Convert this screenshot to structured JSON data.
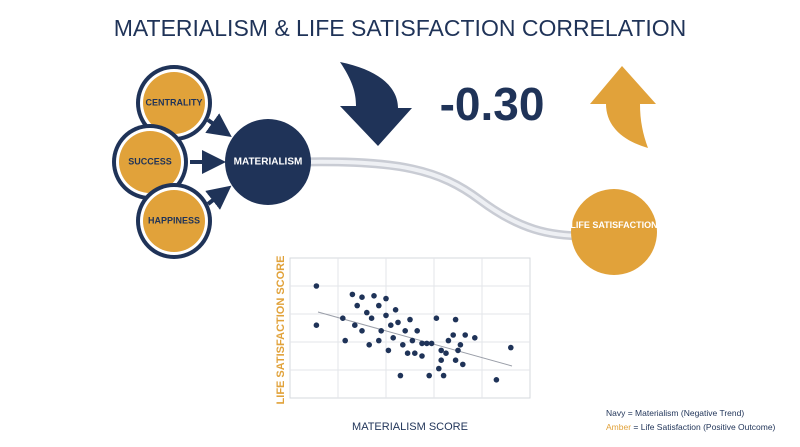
{
  "title": "MATERIALISM & LIFE SATISFACTION CORRELATION",
  "correlation": "-0.30",
  "nodes": [
    {
      "label": "CENTRALITY"
    },
    {
      "label": "SUCCESS"
    },
    {
      "label": "HAPPINESS"
    },
    {
      "label": "MATERIALISM"
    },
    {
      "label": "LIFE SATISFACTION"
    }
  ],
  "chart_data": {
    "type": "scatter",
    "x_label": "MATERIALISM SCORE",
    "y_label": "LIFE SATISFACTION SCORE",
    "color": "#1f3358",
    "xlim": [
      0,
      10
    ],
    "ylim": [
      0,
      10
    ],
    "x": [
      1.1,
      1.1,
      2.2,
      2.3,
      2.6,
      2.7,
      2.8,
      3.0,
      3.2,
      3.3,
      3.4,
      3.5,
      3.7,
      3.7,
      3.8,
      4.0,
      4.0,
      4.1,
      4.2,
      4.3,
      4.4,
      4.5,
      4.6,
      4.7,
      4.8,
      4.9,
      5.0,
      5.1,
      5.2,
      5.3,
      5.5,
      5.5,
      5.7,
      5.8,
      5.9,
      6.1,
      6.3,
      6.3,
      6.4,
      6.5,
      6.6,
      6.8,
      6.9,
      7.0,
      7.1,
      7.2,
      7.3,
      7.7,
      8.6,
      9.2,
      6.9,
      6.2,
      3.0
    ],
    "values": [
      8.0,
      5.2,
      5.7,
      4.1,
      7.4,
      5.2,
      6.6,
      4.8,
      6.1,
      3.8,
      5.7,
      7.3,
      6.6,
      4.1,
      4.8,
      5.9,
      7.1,
      3.4,
      5.2,
      4.3,
      6.3,
      5.4,
      1.6,
      3.8,
      4.8,
      3.2,
      5.6,
      4.1,
      3.2,
      4.8,
      3.9,
      3.0,
      3.9,
      1.6,
      3.9,
      5.7,
      3.4,
      2.7,
      1.6,
      3.2,
      4.1,
      4.5,
      5.6,
      3.4,
      3.8,
      2.4,
      4.5,
      4.3,
      1.3,
      3.6,
      2.7,
      2.1,
      7.2
    ]
  },
  "legend": [
    {
      "key": "Navy",
      "text": " = Materialism (Negative Trend)"
    },
    {
      "key": "Amber",
      "text": " = Life Satisfaction (Positive Outcome)"
    }
  ]
}
